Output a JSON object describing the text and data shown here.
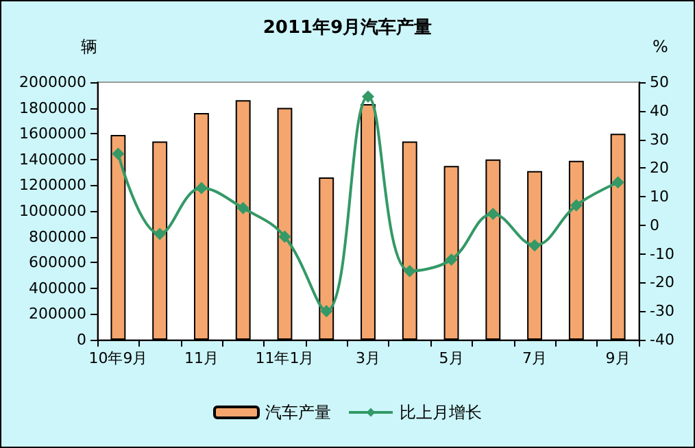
{
  "chart_data": {
    "type": "bar",
    "title": "2011年9月汽车产量",
    "ylabel": "辆",
    "y2label": "%",
    "categories": [
      "10年9月",
      null,
      "11月",
      null,
      "11年1月",
      null,
      "3月",
      null,
      "5月",
      null,
      "7月",
      null,
      "9月"
    ],
    "series": [
      {
        "name": "汽车产量",
        "color": "#f4a66e",
        "values": [
          1590000,
          1540000,
          1760000,
          1860000,
          1800000,
          1260000,
          1830000,
          1540000,
          1350000,
          1400000,
          1310000,
          1390000,
          1600000
        ]
      },
      {
        "name": "比上月增长",
        "type": "line",
        "axis": "y2",
        "color": "#339966",
        "marker": "diamond",
        "values": [
          25,
          -3,
          13,
          6,
          -4,
          -30,
          45,
          -16,
          -12,
          4,
          -7,
          7,
          15
        ]
      }
    ],
    "ylim": [
      0,
      2000000
    ],
    "yticks": [
      0,
      200000,
      400000,
      600000,
      800000,
      1000000,
      1200000,
      1400000,
      1600000,
      1800000,
      2000000
    ],
    "y2lim": [
      -40,
      50
    ],
    "y2ticks": [
      -40,
      -30,
      -20,
      -10,
      0,
      10,
      20,
      30,
      40,
      50
    ],
    "grid": false,
    "legend": "bottom"
  }
}
